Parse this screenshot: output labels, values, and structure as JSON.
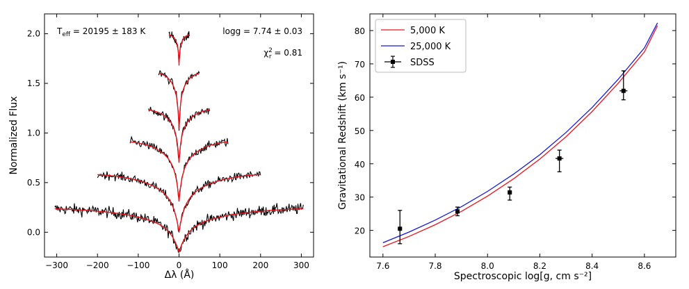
{
  "chart_data": [
    {
      "type": "line",
      "xlabel": "Δλ (Å)",
      "ylabel": "Normalized Flux",
      "xlim": [
        -330,
        330
      ],
      "ylim": [
        -0.25,
        2.2
      ],
      "xticks": [
        "−300",
        "−200",
        "−100",
        "0",
        "100",
        "200",
        "300"
      ],
      "xtick_values": [
        -300,
        -200,
        -100,
        0,
        100,
        200,
        300
      ],
      "yticks": [
        "0.0",
        "0.5",
        "1.0",
        "1.5",
        "2.0"
      ],
      "ytick_values": [
        0.0,
        0.5,
        1.0,
        1.5,
        2.0
      ],
      "annotations": {
        "teff": "T<sub>eff</sub> = 20195 ± 183 K",
        "teff_main": "T",
        "teff_sub": "eff",
        "teff_rest": " = 20195 ± 183 K",
        "logg": "logg = 7.74 ± 0.03",
        "chi_main": "χ",
        "chi_sup": "2",
        "chi_sub": "r",
        "chi_rest": " = 0.81"
      },
      "series": [
        {
          "continuum": 0.25,
          "depth": 0.45,
          "halfwidth": 305,
          "noise": 0.04
        },
        {
          "continuum": 0.6,
          "depth": 0.6,
          "halfwidth": 200,
          "noise": 0.03
        },
        {
          "continuum": 0.93,
          "depth": 0.62,
          "halfwidth": 120,
          "noise": 0.03
        },
        {
          "continuum": 1.25,
          "depth": 0.55,
          "halfwidth": 75,
          "noise": 0.03
        },
        {
          "continuum": 1.62,
          "depth": 0.58,
          "halfwidth": 50,
          "noise": 0.03
        },
        {
          "continuum": 2.0,
          "depth": 0.32,
          "halfwidth": 25,
          "noise": 0.03
        }
      ],
      "colors": {
        "data": "#000000",
        "model": "#e8141e"
      }
    },
    {
      "type": "line",
      "xlabel": "Spectroscopic log[g, cm s⁻²]",
      "ylabel": "Gravitational Redshift (km s⁻¹)",
      "xlim": [
        7.55,
        8.72
      ],
      "ylim": [
        12,
        85
      ],
      "xticks": [
        "7.6",
        "7.8",
        "8.0",
        "8.2",
        "8.4",
        "8.6"
      ],
      "xtick_values": [
        7.6,
        7.8,
        8.0,
        8.2,
        8.4,
        8.6
      ],
      "yticks": [
        "20",
        "30",
        "40",
        "50",
        "60",
        "70",
        "80"
      ],
      "ytick_values": [
        20,
        30,
        40,
        50,
        60,
        70,
        80
      ],
      "legend": {
        "placement": "top-left",
        "entries": [
          "5,000 K",
          "25,000 K",
          "SDSS"
        ]
      },
      "series": [
        {
          "name": "5,000 K",
          "color": "#e8141e",
          "x": [
            7.6,
            7.7,
            7.8,
            7.9,
            8.0,
            8.1,
            8.2,
            8.3,
            8.4,
            8.5,
            8.6,
            8.65
          ],
          "y": [
            15.1,
            18.2,
            21.7,
            25.7,
            30.3,
            35.5,
            41.4,
            48.1,
            55.7,
            64.2,
            73.6,
            81.5
          ]
        },
        {
          "name": "25,000 K",
          "color": "#1616d8",
          "x": [
            7.6,
            7.7,
            7.8,
            7.9,
            8.0,
            8.1,
            8.2,
            8.3,
            8.4,
            8.5,
            8.6,
            8.65
          ],
          "y": [
            16.3,
            19.5,
            23.1,
            27.1,
            31.7,
            36.9,
            42.7,
            49.4,
            56.9,
            65.4,
            74.8,
            82.3
          ]
        },
        {
          "name": "SDSS",
          "color": "#000000",
          "points": [
            {
              "x": 7.665,
              "y": 20.5,
              "yerr_low": 4.5,
              "yerr_high": 5.5,
              "xerr": 0.008
            },
            {
              "x": 7.885,
              "y": 25.7,
              "yerr_low": 1.3,
              "yerr_high": 1.3,
              "xerr": 0.008
            },
            {
              "x": 8.085,
              "y": 31.4,
              "yerr_low": 2.3,
              "yerr_high": 1.6,
              "xerr": 0.008
            },
            {
              "x": 8.275,
              "y": 41.6,
              "yerr_low": 4.0,
              "yerr_high": 2.5,
              "xerr": 0.015
            },
            {
              "x": 8.52,
              "y": 61.9,
              "yerr_low": 2.7,
              "yerr_high": 6.0,
              "xerr": 0.015
            }
          ]
        }
      ]
    }
  ]
}
